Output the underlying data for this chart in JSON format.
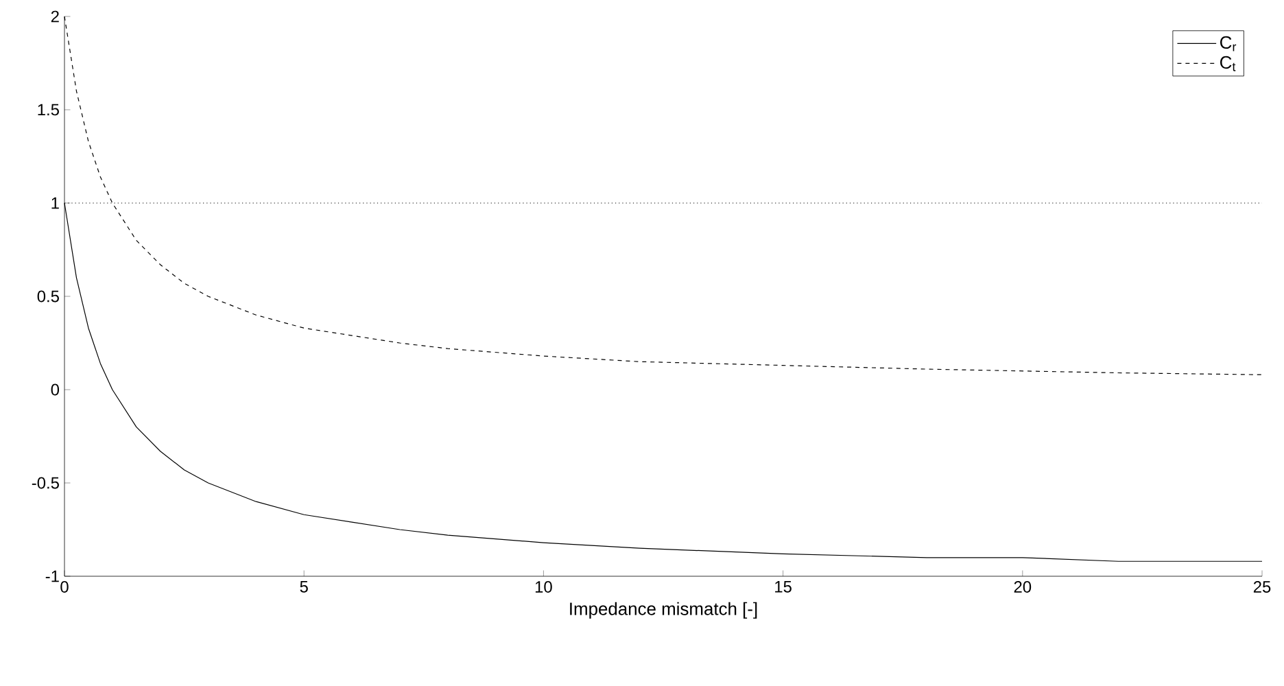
{
  "chart_data": {
    "type": "line",
    "xlabel": "Impedance mismatch [-]",
    "x": [
      0,
      0.25,
      0.5,
      0.75,
      1,
      1.5,
      2,
      2.5,
      3,
      4,
      5,
      6,
      7,
      8,
      10,
      12,
      15,
      18,
      20,
      22,
      25
    ],
    "series": [
      {
        "name": "C$_{r}$",
        "color": "#000000",
        "line_style": "solid",
        "values": [
          1,
          0.6,
          0.33,
          0.14,
          0,
          -0.2,
          -0.33,
          -0.43,
          -0.5,
          -0.6,
          -0.67,
          -0.71,
          -0.75,
          -0.78,
          -0.82,
          -0.85,
          -0.88,
          -0.9,
          -0.9,
          -0.92,
          -0.92
        ]
      },
      {
        "name": "C$_{t}$",
        "color": "#000000",
        "line_style": "dashed",
        "values": [
          2,
          1.6,
          1.33,
          1.14,
          1,
          0.8,
          0.67,
          0.57,
          0.5,
          0.4,
          0.33,
          0.29,
          0.25,
          0.22,
          0.18,
          0.15,
          0.13,
          0.11,
          0.1,
          0.09,
          0.08
        ]
      }
    ],
    "xlim": [
      0,
      25
    ],
    "ylim": [
      -1,
      2
    ],
    "xticks": [
      0,
      5,
      10,
      15,
      20,
      25
    ],
    "yticks": [
      -1,
      -0.5,
      0,
      0.5,
      1,
      1.5,
      2
    ],
    "ref_lines": [
      {
        "axis": "y",
        "value": 1,
        "color": "#000000",
        "line_style": "dotted"
      }
    ],
    "legend": "top right",
    "grid": false,
    "marker": "none"
  }
}
